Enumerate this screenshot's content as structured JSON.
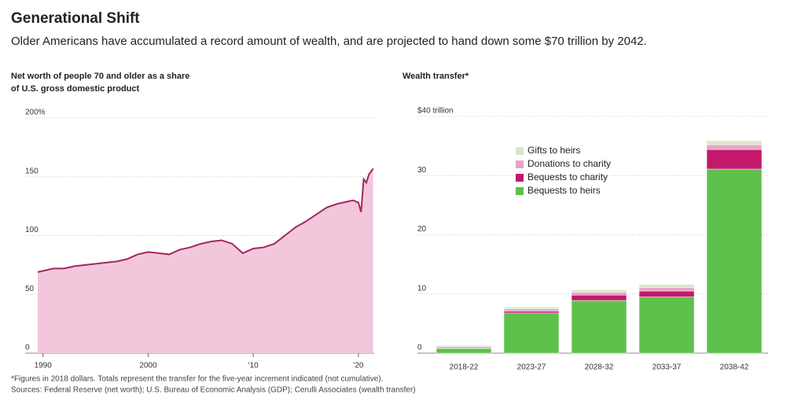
{
  "title": "Generational Shift",
  "subtitle": "Older Americans have accumulated a record amount of wealth, and are projected to hand down some $70  trillion by 2042.",
  "notes": [
    "*Figures in 2018 dollars. Totals represent the transfer for the five-year increment indicated (not cumulative).",
    "Sources: Federal Reserve (net worth); U.S. Bureau of Economic Analysis (GDP); Cerulli Associates (wealth transfer)"
  ],
  "chart_data": [
    {
      "type": "line",
      "title": [
        "Net worth of people 70 and older as a share",
        "of U.S. gross domestic product"
      ],
      "x": [
        1989.5,
        1990,
        1991,
        1992,
        1993,
        1994,
        1995,
        1996,
        1997,
        1998,
        1999,
        2000,
        2001,
        2002,
        2003,
        2004,
        2005,
        2006,
        2007,
        2008,
        2009,
        2010,
        2011,
        2012,
        2013,
        2014,
        2015,
        2016,
        2017,
        2018,
        2019,
        2019.5,
        2020,
        2020.25,
        2020.5,
        2020.75,
        2021,
        2021.4
      ],
      "values": [
        69,
        70,
        72,
        72,
        74,
        75,
        76,
        77,
        78,
        80,
        84,
        86,
        85,
        84,
        88,
        90,
        93,
        95,
        96,
        93,
        85,
        89,
        90,
        93,
        100,
        107,
        112,
        118,
        124,
        127,
        129,
        130,
        128,
        120,
        148,
        145,
        152,
        157
      ],
      "color": "#a3285c",
      "fill": "#f2c7dc",
      "xlim": [
        1989.5,
        2021.5
      ],
      "xticks": [
        1990,
        2000,
        {
          "value": 2010,
          "label": "'10"
        },
        {
          "value": 2020,
          "label": "'20"
        }
      ],
      "ylim": [
        0,
        200
      ],
      "yticks": [
        0,
        50,
        100,
        150,
        {
          "value": 200,
          "label": "200%"
        }
      ],
      "grid": true
    },
    {
      "type": "stacked_bar",
      "title": [
        "Wealth transfer*"
      ],
      "categories": [
        "2018-22",
        "2023-27",
        "2028-32",
        "2033-37",
        "2038-42"
      ],
      "series": [
        {
          "name": "Bequests to heirs",
          "color": "#5ec14c",
          "values": [
            0.8,
            6.8,
            8.9,
            9.5,
            31.1
          ]
        },
        {
          "name": "Bequests to charity",
          "color": "#c2196b",
          "values": [
            0.1,
            0.3,
            0.9,
            1.0,
            3.3
          ]
        },
        {
          "name": "Donations to charity",
          "color": "#e9a3c4",
          "values": [
            0.2,
            0.4,
            0.5,
            0.6,
            0.8
          ]
        },
        {
          "name": "Gifts to heirs",
          "color": "#d8e6cc",
          "values": [
            0.2,
            0.3,
            0.4,
            0.5,
            0.7
          ]
        }
      ],
      "ylim": [
        0,
        40
      ],
      "yticks": [
        0,
        10,
        20,
        30,
        {
          "value": 40,
          "label": "$40 trillion"
        }
      ],
      "grid": true,
      "legend": "top-left"
    }
  ]
}
